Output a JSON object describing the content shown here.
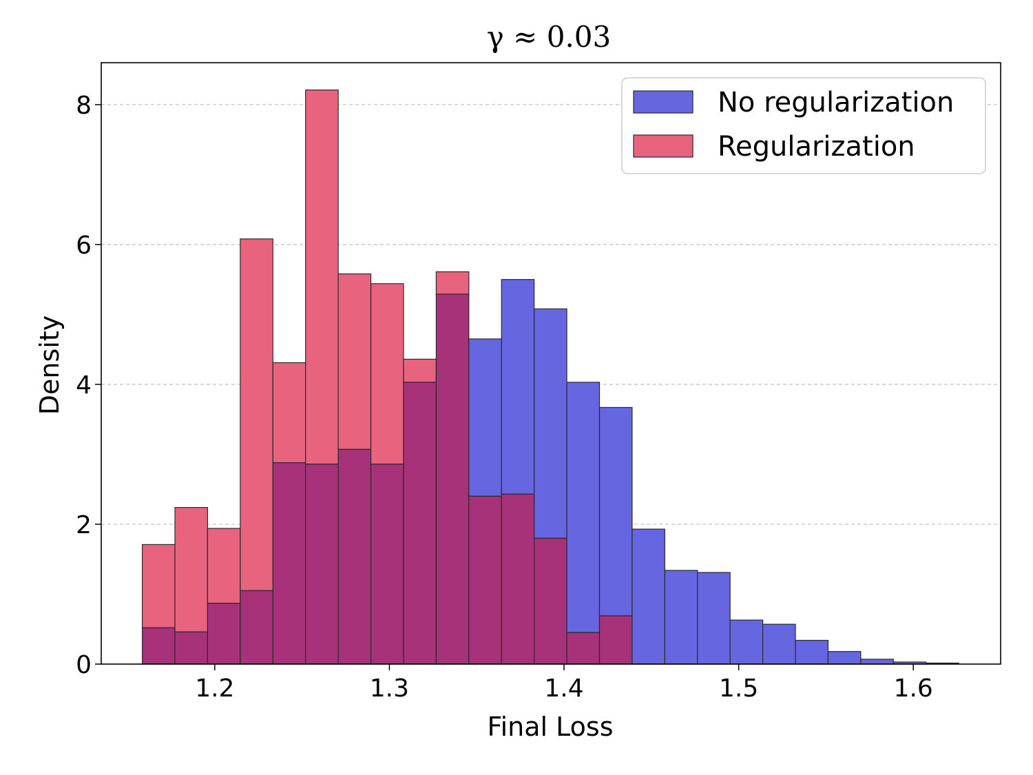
{
  "chart_data": {
    "type": "bar",
    "title": "γ ≈ 0.03",
    "xlabel": "Final Loss",
    "ylabel": "Density",
    "xlim": [
      1.135,
      1.65
    ],
    "ylim": [
      0,
      8.6
    ],
    "xticks": [
      1.2,
      1.3,
      1.4,
      1.5,
      1.6
    ],
    "xtick_labels": [
      "1.2",
      "1.3",
      "1.4",
      "1.5",
      "1.6"
    ],
    "yticks": [
      0,
      2,
      4,
      6,
      8
    ],
    "ytick_labels": [
      "0",
      "2",
      "4",
      "6",
      "8"
    ],
    "grid": "y-dashed",
    "bin_start": 1.1585,
    "bin_width": 0.0187,
    "legend_position": "top-right",
    "series": [
      {
        "name": "No regularization",
        "color": "#6666e0",
        "values": [
          0.52,
          0.46,
          0.87,
          1.05,
          2.88,
          2.86,
          3.07,
          2.86,
          4.03,
          5.29,
          4.65,
          5.5,
          5.08,
          4.03,
          3.67,
          1.93,
          1.34,
          1.31,
          0.63,
          0.57,
          0.34,
          0.18,
          0.07,
          0.03,
          0.015
        ]
      },
      {
        "name": "Regularization",
        "color": "#e8637e",
        "values": [
          1.71,
          2.24,
          1.94,
          6.08,
          4.31,
          8.21,
          5.58,
          5.44,
          4.36,
          5.61,
          2.4,
          2.43,
          1.8,
          0.45,
          0.69
        ]
      }
    ],
    "overlap_color": "#a8327a"
  }
}
